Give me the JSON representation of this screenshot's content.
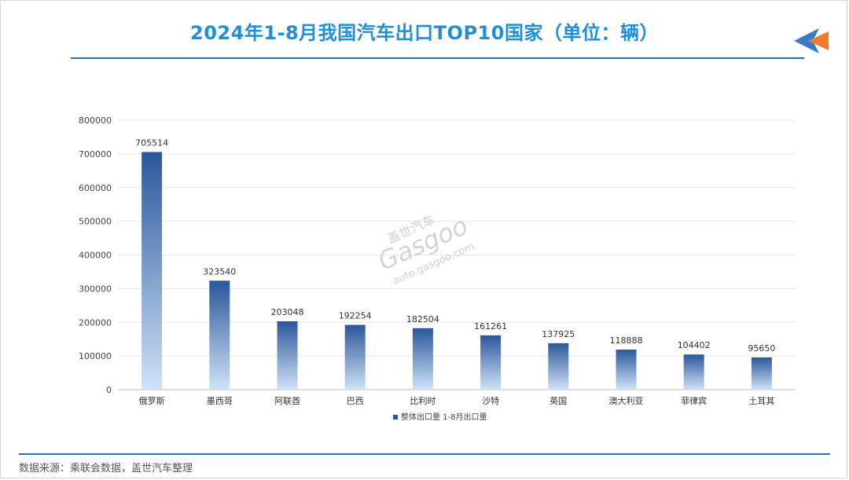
{
  "header": {
    "title": "2024年1-8月我国汽车出口TOP10国家（单位：辆）"
  },
  "footer": {
    "source": "数据来源：乘联会数据，盖世汽车整理"
  },
  "watermark": {
    "cn": "盖世汽车",
    "brand": "Gasgoo",
    "url": "auto.gasgoo.com"
  },
  "colors": {
    "title": "#1f8fd6",
    "rule": "#2a6db0",
    "bar_top": "#2b579a",
    "bar_bottom": "#cfe2f7",
    "deco_blue": "#3a78c9",
    "deco_orange": "#f07a2e"
  },
  "chart_data": {
    "type": "bar",
    "title": "",
    "xlabel": "",
    "ylabel": "",
    "ylim": [
      0,
      800000
    ],
    "yticks": [
      0,
      100000,
      200000,
      300000,
      400000,
      500000,
      600000,
      700000,
      800000
    ],
    "grid": true,
    "legend_position": "bottom",
    "categories": [
      "俄罗斯",
      "墨西哥",
      "阿联酋",
      "巴西",
      "比利时",
      "沙特",
      "英国",
      "澳大利亚",
      "菲律宾",
      "土耳其"
    ],
    "series": [
      {
        "name": "整体出口量  1-8月出口量",
        "values": [
          705514,
          323540,
          203048,
          192254,
          182504,
          161261,
          137925,
          118888,
          104402,
          95650
        ]
      }
    ]
  }
}
